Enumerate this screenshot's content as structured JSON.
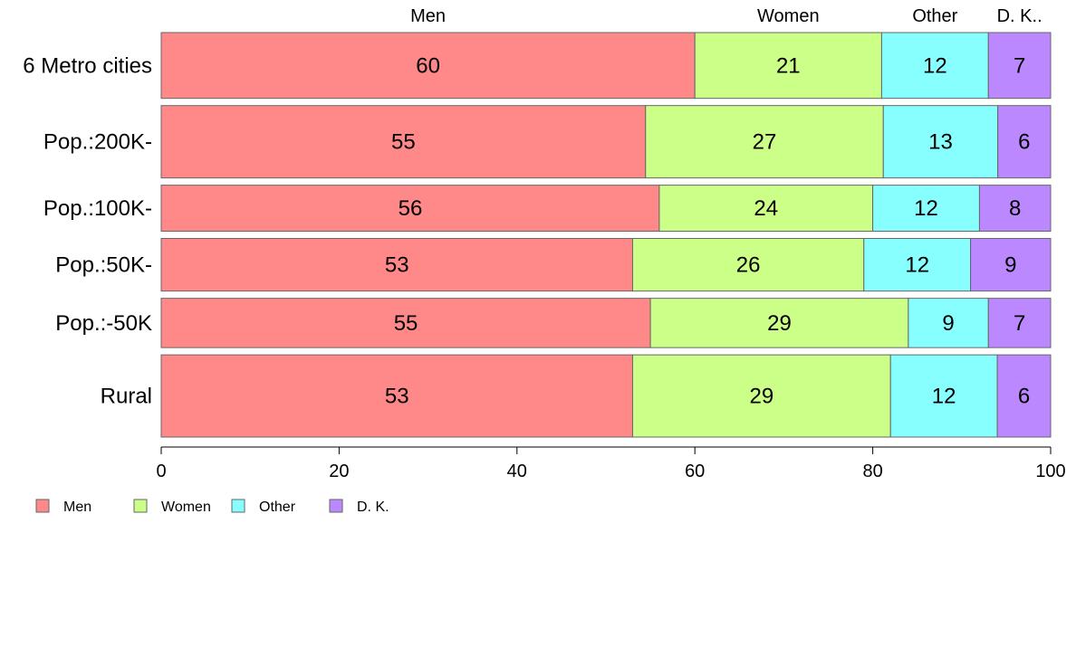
{
  "chart_data": {
    "type": "bar",
    "orientation": "horizontal",
    "stacked": true,
    "categories": [
      "6 Metro cities",
      "Pop.:200K-",
      "Pop.:100K-",
      "Pop.:50K-",
      "Pop.:-50K",
      "Rural"
    ],
    "category_weights": [
      1.0,
      1.1,
      0.7,
      0.8,
      0.75,
      1.25
    ],
    "series": [
      {
        "name": "Men",
        "color": "#ff8888",
        "values": [
          60,
          55,
          56,
          53,
          55,
          53
        ]
      },
      {
        "name": "Women",
        "color": "#ccff88",
        "values": [
          21,
          27,
          24,
          26,
          29,
          29
        ]
      },
      {
        "name": "Other",
        "color": "#88ffff",
        "values": [
          12,
          13,
          12,
          12,
          9,
          12
        ]
      },
      {
        "name": "D. K.",
        "color": "#bb88ff",
        "values": [
          7,
          6,
          8,
          9,
          7,
          6
        ]
      }
    ],
    "top_labels": [
      "Men",
      "Women",
      "Other",
      "D. K.."
    ],
    "xlim": [
      0,
      100
    ],
    "xticks": [
      0,
      20,
      40,
      60,
      80,
      100
    ],
    "grid": false,
    "legend_position": "bottom-left"
  }
}
